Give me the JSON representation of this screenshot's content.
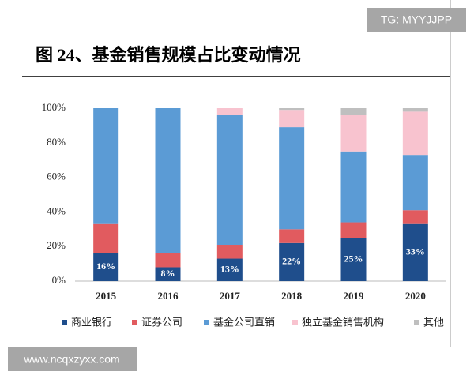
{
  "chart_data": {
    "type": "stacked_bar",
    "title": "图 24、基金销售规模占比变动情况",
    "categories": [
      "2015",
      "2016",
      "2017",
      "2018",
      "2019",
      "2020"
    ],
    "series": [
      {
        "name": "商业银行",
        "color": "#1f4e8c",
        "values": [
          16,
          8,
          13,
          22,
          25,
          33
        ],
        "value_labels": [
          "16%",
          "8%",
          "13%",
          "22%",
          "25%",
          "33%"
        ]
      },
      {
        "name": "证券公司",
        "color": "#e15b5f",
        "values": [
          17,
          8,
          8,
          8,
          9,
          8
        ]
      },
      {
        "name": "基金公司直销",
        "color": "#5b9bd5",
        "values": [
          67,
          84,
          75,
          59,
          41,
          32
        ]
      },
      {
        "name": "独立基金销售机构",
        "color": "#f8c3cf",
        "values": [
          0,
          0,
          4,
          10,
          21,
          25
        ]
      },
      {
        "name": "其他",
        "color": "#bfbfbf",
        "values": [
          0,
          0,
          0,
          1,
          4,
          2
        ]
      }
    ],
    "ylim": [
      0,
      100
    ],
    "yticks": [
      {
        "value": 0,
        "label": "0%"
      },
      {
        "value": 20,
        "label": "20%"
      },
      {
        "value": 40,
        "label": "40%"
      },
      {
        "value": 60,
        "label": "60%"
      },
      {
        "value": 80,
        "label": "80%"
      },
      {
        "value": 100,
        "label": "100%"
      }
    ]
  },
  "watermarks": [
    "TG: MYYJJPP",
    "www.ncqxzyxx.com"
  ]
}
